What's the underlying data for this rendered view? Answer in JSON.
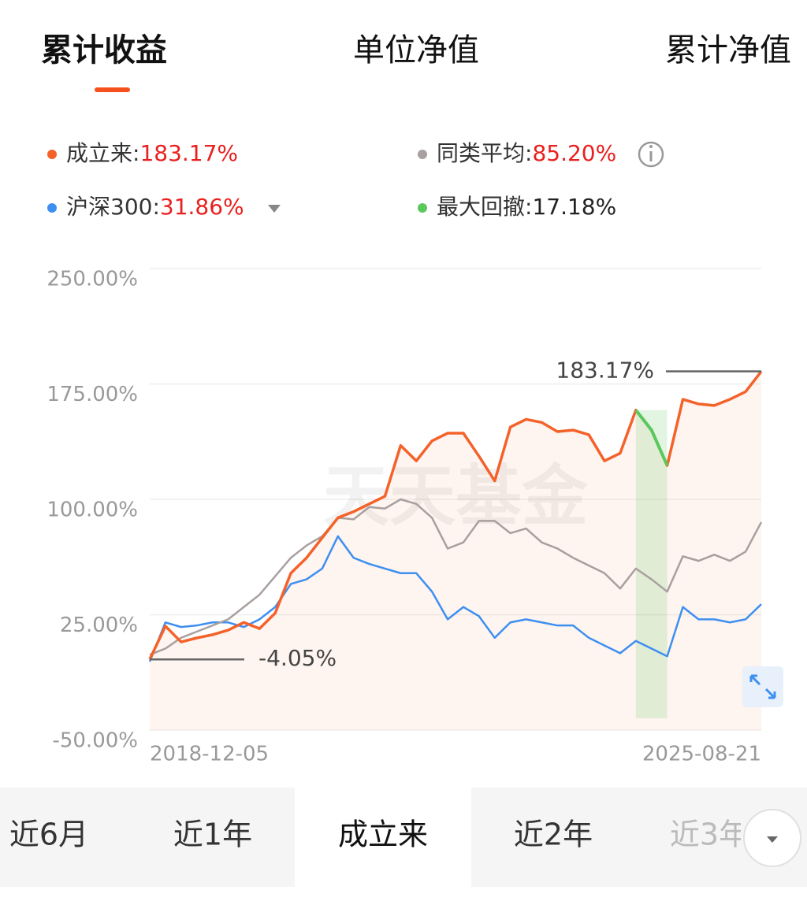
{
  "top_tabs": [
    "累计收益",
    "单位净值",
    "累计净值"
  ],
  "range_tabs": [
    "近6月",
    "近1年",
    "成立来",
    "近2年",
    "近3年"
  ],
  "chart_data": {
    "type": "line",
    "legend_separator": ":",
    "watermark": "天天基金",
    "categories": [
      "2018-12-05",
      null,
      null,
      null,
      null,
      null,
      null,
      null,
      null,
      null,
      null,
      null,
      null,
      null,
      null,
      null,
      null,
      null,
      null,
      null,
      null,
      null,
      null,
      null,
      null,
      null,
      null,
      null,
      null,
      null,
      null,
      null,
      null,
      null,
      null,
      null,
      null,
      null,
      null,
      "2025-08-21"
    ],
    "series": [
      {
        "name": "成立来",
        "color": "#f4622a",
        "legend_value": "183.17%",
        "values": [
          -4.05,
          17.6,
          7.3,
          9.9,
          12,
          15,
          20,
          16,
          26,
          52,
          62,
          75,
          88,
          92,
          97,
          102,
          135,
          125,
          138,
          143,
          143,
          128,
          112,
          147,
          152,
          150,
          144,
          145,
          142,
          125,
          130,
          158,
          145,
          122,
          165,
          162,
          161,
          165,
          170,
          183.17
        ]
      },
      {
        "name": "同类平均",
        "color": "#a8a09e",
        "legend_value": "85.20%",
        "values": [
          -1,
          3,
          10,
          14,
          18,
          22,
          30,
          38,
          50,
          62,
          70,
          76,
          88,
          87,
          95,
          94,
          100,
          97,
          88,
          68,
          72,
          86,
          86,
          78,
          81,
          72,
          68,
          62,
          57,
          52,
          42,
          55,
          48,
          40,
          63,
          60,
          64,
          60,
          66,
          85.2
        ]
      },
      {
        "name": "沪深300",
        "color": "#3d8ff0",
        "legend_value": "31.86%",
        "values": [
          -5.5,
          20,
          17,
          18,
          20,
          20,
          17,
          22,
          30,
          45,
          48,
          55,
          76,
          62,
          58,
          55,
          52,
          52,
          40,
          22,
          30,
          24,
          10,
          20,
          22,
          20,
          18,
          18,
          10,
          5,
          0,
          8,
          3,
          -2,
          30,
          22,
          22,
          20,
          22,
          31.86
        ]
      }
    ],
    "drawdown": {
      "name": "最大回撤",
      "color": "#5cc85c",
      "value_label": "17.18%"
    },
    "annotations": {
      "max": "183.17%",
      "min": "-4.05%"
    },
    "ylim": [
      -50,
      250
    ],
    "yticks": [
      {
        "value": -50,
        "label": "-50.00%"
      },
      {
        "value": 25,
        "label": "25.00%"
      },
      {
        "value": 100,
        "label": "100.00%"
      },
      {
        "value": 175,
        "label": "175.00%"
      },
      {
        "value": 250,
        "label": "250.00%"
      }
    ],
    "grid": true
  }
}
